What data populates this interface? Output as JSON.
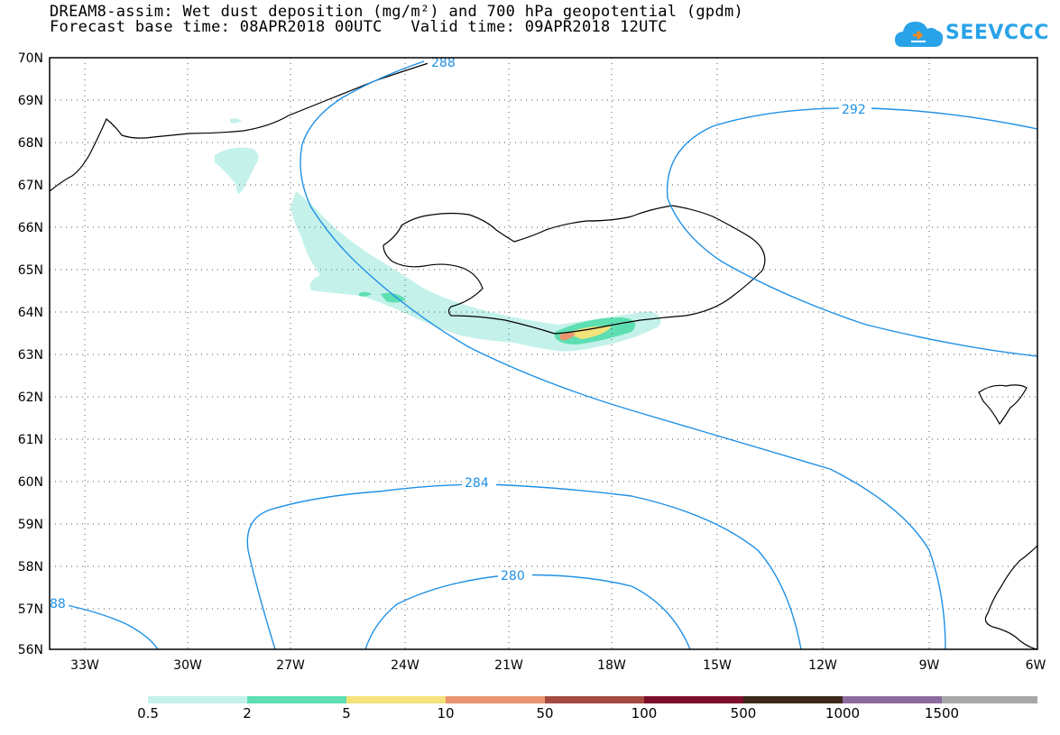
{
  "title": {
    "line1": "DREAM8-assim: Wet dust deposition (mg/m²) and 700 hPa geopotential (gpdm)",
    "line2": "Forecast base time: 08APR2018 00UTC   Valid time: 09APR2018 12UTC"
  },
  "logo": {
    "text": "SEEVCCC"
  },
  "axes": {
    "lat_labels": [
      "70N",
      "69N",
      "68N",
      "67N",
      "66N",
      "65N",
      "64N",
      "63N",
      "62N",
      "61N",
      "60N",
      "59N",
      "58N",
      "57N",
      "56N"
    ],
    "lon_labels": [
      "33W",
      "30W",
      "27W",
      "24W",
      "21W",
      "18W",
      "15W",
      "12W",
      "9W",
      "6W"
    ],
    "lat_range": [
      56,
      70
    ],
    "lon_range": [
      -34.5,
      -6
    ],
    "grid": "dotted"
  },
  "contours": {
    "color": "#1e90e6",
    "labels": [
      "288",
      "292",
      "284",
      "280",
      "88"
    ]
  },
  "colorbar": {
    "labels": [
      "0.5",
      "2",
      "5",
      "10",
      "50",
      "100",
      "500",
      "1000",
      "1500"
    ],
    "colors": [
      "#c4f2ea",
      "#5ddfb2",
      "#f4e27a",
      "#eb9570",
      "#a54a40",
      "#7d0f2c",
      "#3d2719",
      "#8c6b9f",
      "#a8a8a8"
    ]
  }
}
